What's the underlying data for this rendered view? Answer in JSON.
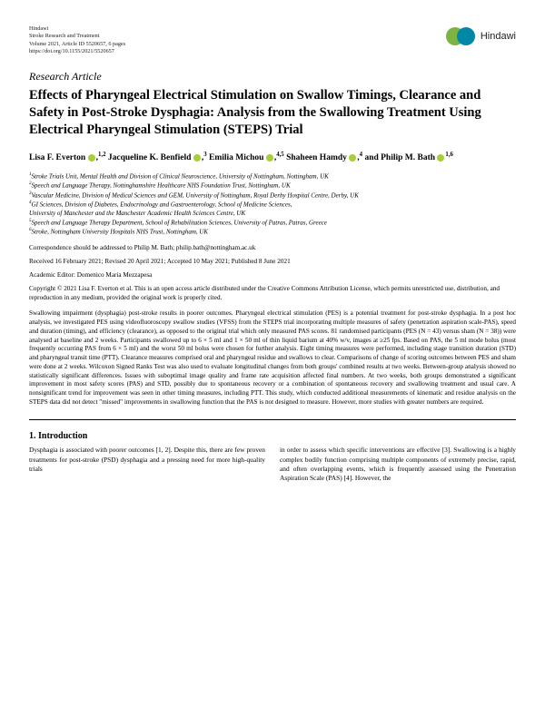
{
  "journal": {
    "name": "Hindawi",
    "publication": "Stroke Research and Treatment",
    "volume": "Volume 2021, Article ID 5520657, 6 pages",
    "doi": "https://doi.org/10.1155/2021/5520657",
    "publisher_logo_text": "Hindawi"
  },
  "article_type": "Research Article",
  "title": "Effects of Pharyngeal Electrical Stimulation on Swallow Timings, Clearance and Safety in Post-Stroke Dysphagia: Analysis from the Swallowing Treatment Using Electrical Pharyngeal Stimulation (STEPS) Trial",
  "authors_html": "Lisa F. Everton <span class='orcid'></span>,<sup>1,2</sup> Jacqueline K. Benfield <span class='orcid'></span>,<sup>3</sup> Emilia Michou <span class='orcid'></span>,<sup>4,5</sup> Shaheen Hamdy <span class='orcid'></span>,<sup>4</sup> and Philip M. Bath <span class='orcid'></span><sup>1,6</sup>",
  "affiliations": [
    "1 Stroke Trials Unit, Mental Health and Division of Clinical Neuroscience, University of Nottingham, Nottingham, UK",
    "2 Speech and Language Therapy, Nottinghamshire Healthcare NHS Foundation Trust, Nottingham, UK",
    "3 Vascular Medicine, Division of Medical Sciences and GEM, University of Nottingham, Royal Derby Hospital Centre, Derby, UK",
    "4 GI Sciences, Division of Diabetes, Endocrinology and Gastroenterology, School of Medicine Sciences,",
    "  University of Manchester and the Manchester Academic Health Sciences Centre, UK",
    "5 Speech and Language Therapy Department, School of Rehabilitation Sciences, University of Patras, Patras, Greece",
    "6 Stroke, Nottingham University Hospitals NHS Trust, Nottingham, UK"
  ],
  "correspondence": "Correspondence should be addressed to Philip M. Bath; philip.bath@nottingham.ac.uk",
  "dates": "Received 16 February 2021; Revised 20 April 2021; Accepted 10 May 2021; Published 8 June 2021",
  "editor": "Academic Editor: Domenico Maria Mezzapesa",
  "copyright": "Copyright © 2021 Lisa F. Everton et al. This is an open access article distributed under the Creative Commons Attribution License, which permits unrestricted use, distribution, and reproduction in any medium, provided the original work is properly cited.",
  "abstract": "Swallowing impairment (dysphagia) post-stroke results in poorer outcomes. Pharyngeal electrical stimulation (PES) is a potential treatment for post-stroke dysphagia. In a post hoc analysis, we investigated PES using videofluoroscopy swallow studies (VFSS) from the STEPS trial incorporating multiple measures of safety (penetration aspiration scale-PAS), speed and duration (timing), and efficiency (clearance), as opposed to the original trial which only measured PAS scores. 81 randomised participants (PES (N = 43) versus sham (N = 38)) were analysed at baseline and 2 weeks. Participants swallowed up to 6 × 5 ml and 1 × 50 ml of thin liquid barium at 40% w/v, images at ≥25 fps. Based on PAS, the 5 ml mode bolus (most frequently occurring PAS from 6 × 5 ml) and the worst 50 ml bolus were chosen for further analysis. Eight timing measures were performed, including stage transition duration (STD) and pharyngeal transit time (PTT). Clearance measures comprised oral and pharyngeal residue and swallows to clear. Comparisons of change of scoring outcomes between PES and sham were done at 2 weeks. Wilcoxon Signed Ranks Test was also used to evaluate longitudinal changes from both groups' combined results at two weeks. Between-group analysis showed no statistically significant differences. Issues with suboptimal image quality and frame rate acquisition affected final numbers. At two weeks, both groups demonstrated a significant improvement in most safety scores (PAS) and STD, possibly due to spontaneous recovery or a combination of spontaneous recovery and swallowing treatment and usual care. A nonsignificant trend for improvement was seen in other timing measures, including PTT. This study, which conducted additional measurements of kinematic and residue analysis on the STEPS data did not detect \"missed\" improvements in swallowing function that the PAS is not designed to measure. However, more studies with greater numbers are required.",
  "section1_title": "1. Introduction",
  "intro_col1": "Dysphagia is associated with poorer outcomes [1, 2]. Despite this, there are few proven treatments for post-stroke (PSD) dysphagia and a pressing need for more high-quality trials",
  "intro_col2": "in order to assess which specific interventions are effective [3]. Swallowing is a highly complex bodily function comprising multiple components of extremely precise, rapid, and often overlapping events, which is frequently assessed using the Penetration Aspiration Scale (PAS) [4]. However, the",
  "colors": {
    "orcid_green": "#a6ce39",
    "logo_green": "#7cb342",
    "logo_blue": "#0288a7",
    "text": "#000000",
    "background": "#ffffff"
  }
}
